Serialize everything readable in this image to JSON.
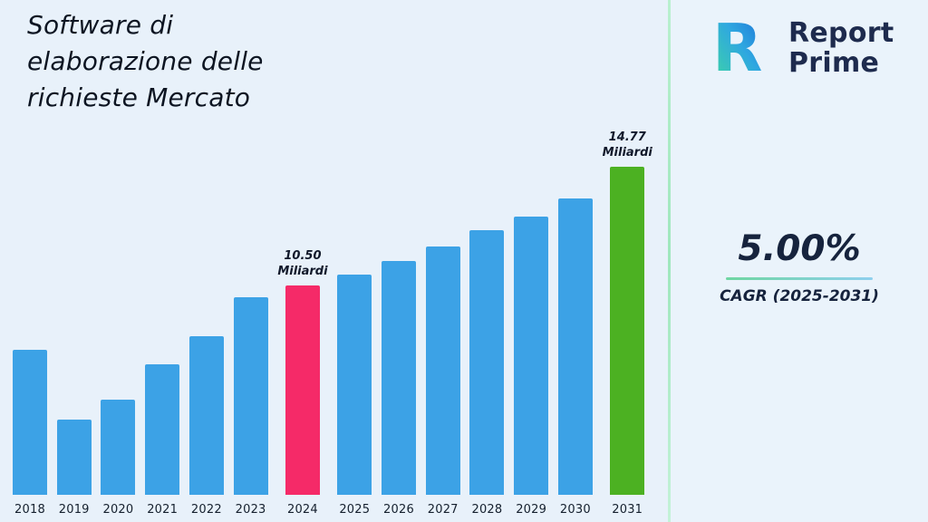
{
  "title": "Software di elaborazione delle richieste Mercato",
  "brand": {
    "line1": "Report",
    "line2": "Prime",
    "logo_icon": "report-prime-r-mark",
    "logo_gradient": [
      "#3ed8a0",
      "#1b6fd8"
    ]
  },
  "stats": {
    "cagr_value": "5.00%",
    "cagr_label": "CAGR (2025-2031)"
  },
  "chart_data": {
    "type": "bar",
    "title": "Software di elaborazione delle richieste Mercato",
    "xlabel": "",
    "ylabel": "",
    "unit": "Miliardi",
    "categories": [
      "2018",
      "2019",
      "2020",
      "2021",
      "2022",
      "2023",
      "2024",
      "2025",
      "2026",
      "2027",
      "2028",
      "2029",
      "2030",
      "2031"
    ],
    "values": [
      8.2,
      5.7,
      6.4,
      7.7,
      8.7,
      10.1,
      10.5,
      10.9,
      11.4,
      11.9,
      12.5,
      13.0,
      13.65,
      14.77
    ],
    "ylim": [
      3,
      15.2
    ],
    "grid": false,
    "legend": false,
    "annotations": [
      {
        "year": "2024",
        "value": "10.50",
        "unit": "Miliardi"
      },
      {
        "year": "2031",
        "value": "14.77",
        "unit": "Miliardi"
      }
    ],
    "colors": {
      "default": "#3ca2e6",
      "2024": "#f52a68",
      "2031": "#4cb122"
    }
  }
}
